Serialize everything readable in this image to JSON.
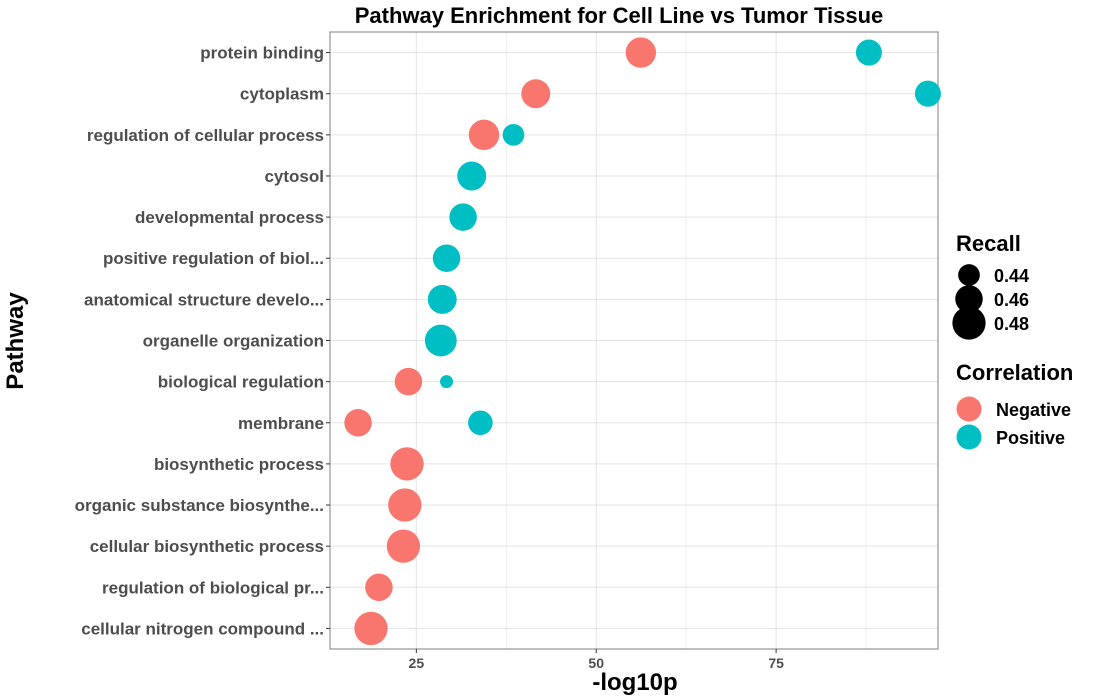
{
  "chart_data": {
    "type": "scatter",
    "title": "Pathway Enrichment for Cell Line vs Tumor Tissue",
    "xlabel": "-log10p",
    "ylabel": "Pathway",
    "x_ticks": [
      25,
      50,
      75
    ],
    "xlim": [
      13,
      97.5
    ],
    "categories": [
      "protein binding",
      "cytoplasm",
      "regulation of cellular process",
      "cytosol",
      "developmental process",
      "positive regulation of biol...",
      "anatomical structure develo...",
      "organelle organization",
      "biological regulation",
      "membrane",
      "biosynthetic process",
      "organic substance biosynthe...",
      "cellular biosynthetic process",
      "regulation of biological pr...",
      "cellular nitrogen compound ..."
    ],
    "series": [
      {
        "name": "Negative",
        "color": "#F8766D",
        "points": [
          {
            "category": "protein binding",
            "x": 56.2,
            "recall": 0.47
          },
          {
            "category": "cytoplasm",
            "x": 41.6,
            "recall": 0.465
          },
          {
            "category": "regulation of cellular process",
            "x": 34.4,
            "recall": 0.47
          },
          {
            "category": "biological regulation",
            "x": 23.9,
            "recall": 0.46
          },
          {
            "category": "membrane",
            "x": 16.9,
            "recall": 0.46
          },
          {
            "category": "biosynthetic process",
            "x": 23.7,
            "recall": 0.48
          },
          {
            "category": "organic substance biosynthe...",
            "x": 23.4,
            "recall": 0.48
          },
          {
            "category": "cellular biosynthetic process",
            "x": 23.2,
            "recall": 0.48
          },
          {
            "category": "regulation of biological pr...",
            "x": 19.8,
            "recall": 0.46
          },
          {
            "category": "cellular nitrogen compound ...",
            "x": 18.7,
            "recall": 0.48
          }
        ]
      },
      {
        "name": "Positive",
        "color": "#00BFC4",
        "points": [
          {
            "category": "protein binding",
            "x": 87.9,
            "recall": 0.455
          },
          {
            "category": "cytoplasm",
            "x": 96.1,
            "recall": 0.455
          },
          {
            "category": "regulation of cellular process",
            "x": 38.5,
            "recall": 0.44
          },
          {
            "category": "cytosol",
            "x": 32.7,
            "recall": 0.465
          },
          {
            "category": "developmental process",
            "x": 31.5,
            "recall": 0.46
          },
          {
            "category": "positive regulation of biol...",
            "x": 29.2,
            "recall": 0.46
          },
          {
            "category": "anatomical structure develo...",
            "x": 28.6,
            "recall": 0.465
          },
          {
            "category": "organelle organization",
            "x": 28.4,
            "recall": 0.475
          },
          {
            "category": "biological regulation",
            "x": 29.2,
            "recall": 0.41
          },
          {
            "category": "membrane",
            "x": 33.9,
            "recall": 0.45
          }
        ]
      }
    ],
    "legend": {
      "position": "right",
      "size_title": "Recall",
      "size_entries": [
        {
          "label": "0.44",
          "recall": 0.44
        },
        {
          "label": "0.46",
          "recall": 0.46
        },
        {
          "label": "0.48",
          "recall": 0.48
        }
      ],
      "color_title": "Correlation",
      "color_entries": [
        {
          "label": "Negative",
          "color": "#F8766D"
        },
        {
          "label": "Positive",
          "color": "#00BFC4"
        }
      ]
    },
    "grid": true
  }
}
